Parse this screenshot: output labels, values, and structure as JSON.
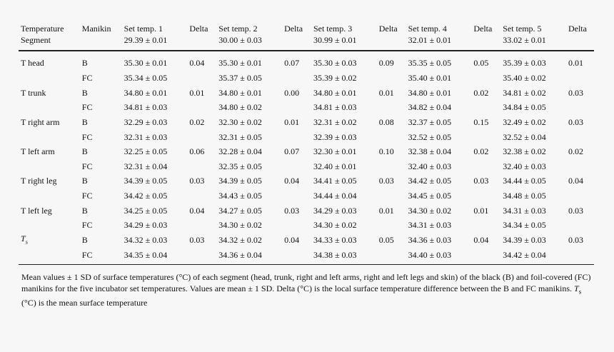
{
  "table": {
    "headers": [
      {
        "l1": "Temperature",
        "l2": "Segment"
      },
      {
        "l1": "Manikin",
        "l2": ""
      },
      {
        "l1": "Set temp. 1",
        "l2": "29.39 ± 0.01"
      },
      {
        "l1": "Delta",
        "l2": ""
      },
      {
        "l1": "Set temp. 2",
        "l2": "30.00 ± 0.03"
      },
      {
        "l1": "Delta",
        "l2": ""
      },
      {
        "l1": "Set temp. 3",
        "l2": "30.99 ± 0.01"
      },
      {
        "l1": "Delta",
        "l2": ""
      },
      {
        "l1": "Set temp. 4",
        "l2": "32.01 ± 0.01"
      },
      {
        "l1": "Delta",
        "l2": ""
      },
      {
        "l1": "Set temp. 5",
        "l2": "33.02 ± 0.01"
      },
      {
        "l1": "Delta",
        "l2": ""
      }
    ],
    "rows": [
      [
        "T head",
        "B",
        "35.30 ± 0.01",
        "0.04",
        "35.30 ± 0.01",
        "0.07",
        "35.30 ± 0.03",
        "0.09",
        "35.35 ± 0.05",
        "0.05",
        "35.39 ± 0.03",
        "0.01"
      ],
      [
        "",
        "FC",
        "35.34 ± 0.05",
        "",
        "35.37 ± 0.05",
        "",
        "35.39 ± 0.02",
        "",
        "35.40 ± 0.01",
        "",
        "35.40 ± 0.02",
        ""
      ],
      [
        "T trunk",
        "B",
        "34.80 ± 0.01",
        "0.01",
        "34.80 ± 0.01",
        "0.00",
        "34.80 ± 0.01",
        "0.01",
        "34.80 ± 0.01",
        "0.02",
        "34.81 ± 0.02",
        "0.03"
      ],
      [
        "",
        "FC",
        "34.81 ± 0.03",
        "",
        "34.80 ± 0.02",
        "",
        "34.81 ± 0.03",
        "",
        "34.82 ± 0.04",
        "",
        "34.84 ± 0.05",
        ""
      ],
      [
        "T right arm",
        "B",
        "32.29 ± 0.03",
        "0.02",
        "32.30 ± 0.02",
        "0.01",
        "32.31 ± 0.02",
        "0.08",
        "32.37 ± 0.05",
        "0.15",
        "32.49 ± 0.02",
        "0.03"
      ],
      [
        "",
        "FC",
        "32.31 ± 0.03",
        "",
        "32.31 ± 0.05",
        "",
        "32.39 ± 0.03",
        "",
        "32.52 ± 0.05",
        "",
        "32.52 ± 0.04",
        ""
      ],
      [
        "T left arm",
        "B",
        "32.25 ± 0.05",
        "0.06",
        "32.28 ± 0.04",
        "0.07",
        "32.30 ± 0.01",
        "0.10",
        "32.38 ± 0.04",
        "0.02",
        "32.38 ± 0.02",
        "0.02"
      ],
      [
        "",
        "FC",
        "32.31 ± 0.04",
        "",
        "32.35 ± 0.05",
        "",
        "32.40 ± 0.01",
        "",
        "32.40 ± 0.03",
        "",
        "32.40 ± 0.03",
        ""
      ],
      [
        "T right leg",
        "B",
        "34.39 ± 0.05",
        "0.03",
        "34.39 ± 0.05",
        "0.04",
        "34.41 ± 0.05",
        "0.03",
        "34.42 ± 0.05",
        "0.03",
        "34.44 ± 0.05",
        "0.04"
      ],
      [
        "",
        "FC",
        "34.42 ± 0.05",
        "",
        "34.43 ± 0.05",
        "",
        "34.44 ± 0.04",
        "",
        "34.45 ± 0.05",
        "",
        "34.48 ± 0.05",
        ""
      ],
      [
        "T left leg",
        "B",
        "34.25 ± 0.05",
        "0.04",
        "34.27 ± 0.05",
        "0.03",
        "34.29 ± 0.03",
        "0.01",
        "34.30 ± 0.02",
        "0.01",
        "34.31 ± 0.03",
        "0.03"
      ],
      [
        "",
        "FC",
        "34.29 ± 0.03",
        "",
        "34.30 ± 0.02",
        "",
        "34.30 ± 0.02",
        "",
        "34.31 ± 0.03",
        "",
        "34.34 ± 0.05",
        ""
      ],
      [
        "",
        "B",
        "34.32 ± 0.03",
        "0.03",
        "34.32 ± 0.02",
        "0.04",
        "34.33 ± 0.03",
        "0.05",
        "34.36 ± 0.03",
        "0.04",
        "34.39 ± 0.03",
        "0.03"
      ],
      [
        "",
        "FC",
        "34.35 ± 0.04",
        "",
        "34.36 ± 0.04",
        "",
        "34.38 ± 0.03",
        "",
        "34.40 ± 0.03",
        "",
        "34.42 ± 0.04",
        ""
      ]
    ],
    "ts_label": {
      "main": "T",
      "sub": "s"
    }
  },
  "caption": {
    "part1": "Mean values ± 1 SD of surface temperatures (°C) of each segment (head, trunk, right and left arms, right and left legs and skin) of the black (B) and foil-covered (FC) manikins for the five incubator set temperatures. Values are mean ± 1 SD. Delta (°C) is the local surface temperature difference between the B and FC manikins. ",
    "t_main": "T",
    "t_sub": "s",
    "part2": " (°C) is the mean surface temperature"
  }
}
